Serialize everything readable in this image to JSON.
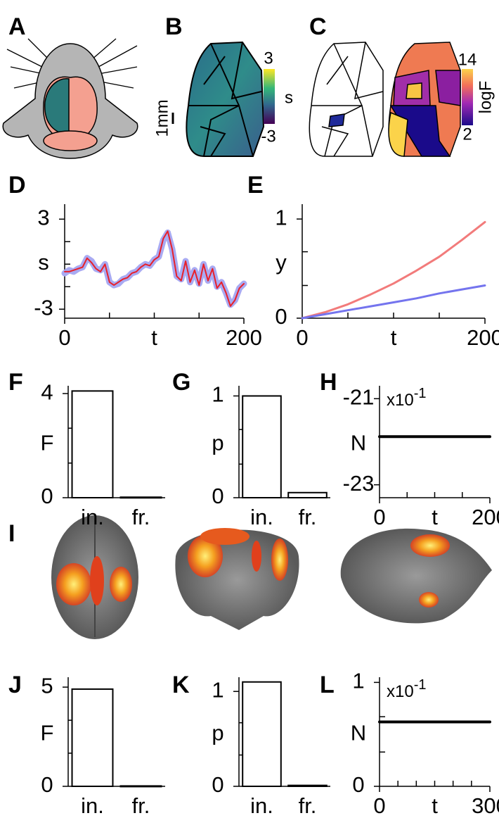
{
  "panel_labels": [
    "A",
    "B",
    "C",
    "D",
    "E",
    "F",
    "G",
    "H",
    "I",
    "J",
    "K",
    "L"
  ],
  "panel_b": {
    "scale_bar": "1mm",
    "colorbar_max": 3,
    "colorbar_min": -3,
    "colorbar_label": "s"
  },
  "panel_c": {
    "colorbar_max": 14,
    "colorbar_min": 2,
    "colorbar_label": "logF"
  },
  "chart_data": [
    {
      "type": "line",
      "xlabel": "t",
      "ylabel": "s",
      "xlim": [
        0,
        200
      ],
      "xticks": [
        0,
        200
      ],
      "xminor": [
        50,
        100,
        150
      ],
      "ylim": [
        -3.6,
        4
      ],
      "yticks": [
        -3,
        3
      ],
      "yminor": [
        -1.5,
        0,
        1.5
      ],
      "x": [
        0,
        5,
        10,
        15,
        20,
        25,
        30,
        35,
        40,
        45,
        50,
        55,
        60,
        65,
        70,
        75,
        80,
        85,
        90,
        95,
        100,
        105,
        110,
        115,
        120,
        125,
        130,
        135,
        140,
        145,
        150,
        155,
        160,
        165,
        170,
        175,
        180,
        185,
        190,
        195,
        200
      ],
      "series": [
        {
          "color": "#a9aaf2",
          "values": [
            -0.6,
            -0.4,
            -0.5,
            -0.3,
            -0.2,
            0.4,
            0.2,
            -0.3,
            -0.4,
            0.0,
            -1.2,
            -1.4,
            -1.3,
            -1.0,
            -0.9,
            -0.6,
            -0.5,
            -0.2,
            0.0,
            -0.1,
            0.3,
            0.5,
            1.6,
            2.1,
            1.0,
            -0.8,
            -1.0,
            0.2,
            -1.2,
            -0.4,
            -1.3,
            0.0,
            -1.1,
            -0.3,
            -1.5,
            -1.2,
            -1.9,
            -2.7,
            -2.4,
            -1.6,
            -1.3
          ]
        },
        {
          "color": "#e8202a",
          "values": [
            -0.5,
            -0.5,
            -0.4,
            -0.3,
            -0.2,
            0.4,
            0.1,
            -0.3,
            -0.5,
            0.0,
            -1.2,
            -1.4,
            -1.2,
            -1.0,
            -0.9,
            -0.6,
            -0.5,
            -0.2,
            0.0,
            -0.1,
            0.3,
            0.5,
            1.7,
            2.2,
            1.0,
            -0.8,
            -1.1,
            0.2,
            -1.2,
            -0.4,
            -1.4,
            0.0,
            -1.1,
            -0.3,
            -1.6,
            -1.2,
            -1.9,
            -2.8,
            -2.4,
            -1.6,
            -1.3
          ]
        }
      ]
    },
    {
      "type": "line",
      "xlabel": "t",
      "ylabel": "y",
      "xlim": [
        0,
        200
      ],
      "xticks": [
        0,
        200
      ],
      "xminor": [
        50,
        100,
        150
      ],
      "ylim": [
        0,
        1.15
      ],
      "yticks": [
        0,
        1
      ],
      "yminor": [
        0.33,
        0.67
      ],
      "x": [
        0,
        25,
        50,
        75,
        100,
        125,
        150,
        175,
        200
      ],
      "series": [
        {
          "color": "#f27b7b",
          "values": [
            0,
            0.06,
            0.14,
            0.24,
            0.35,
            0.48,
            0.62,
            0.79,
            0.97
          ]
        },
        {
          "color": "#7474ee",
          "values": [
            0,
            0.04,
            0.08,
            0.12,
            0.16,
            0.2,
            0.25,
            0.29,
            0.33
          ]
        }
      ]
    },
    {
      "type": "bar",
      "ylabel": "F",
      "categories": [
        "in.",
        "fr."
      ],
      "values": [
        4.1,
        0.02
      ],
      "ylim": [
        0,
        4.3
      ],
      "yticks": [
        0,
        4
      ],
      "yminor": [
        1.33,
        2.67
      ]
    },
    {
      "type": "bar",
      "ylabel": "p",
      "categories": [
        "in.",
        "fr."
      ],
      "values": [
        1.0,
        0.05
      ],
      "ylim": [
        0,
        1.1
      ],
      "yticks": [
        0,
        1
      ],
      "yminor": [
        0.33,
        0.67
      ]
    },
    {
      "type": "line",
      "xlabel": "t",
      "ylabel": "N",
      "multiplier": "x10",
      "exponent": "-1",
      "xlim": [
        0,
        200
      ],
      "xticks": [
        0,
        200
      ],
      "xminor": [
        50,
        100,
        150
      ],
      "ylim": [
        -23.3,
        -20.7
      ],
      "yticks": [
        -23,
        -21
      ],
      "x": [
        0,
        200
      ],
      "series": [
        {
          "color": "#000000",
          "values": [
            -21.88,
            -21.88
          ]
        }
      ]
    },
    {
      "type": "bar",
      "ylabel": "F",
      "categories": [
        "in.",
        "fr."
      ],
      "values": [
        4.9,
        0.02
      ],
      "ylim": [
        0,
        5.5
      ],
      "yticks": [
        0,
        5
      ],
      "yminor": [
        1.67,
        3.33
      ]
    },
    {
      "type": "bar",
      "ylabel": "p",
      "categories": [
        "in.",
        "fr."
      ],
      "values": [
        1.1,
        0.01
      ],
      "ylim": [
        0,
        1.15
      ],
      "yticks": [
        0,
        1
      ],
      "yminor": [
        0.33,
        0.67
      ]
    },
    {
      "type": "line",
      "xlabel": "t",
      "ylabel": "N",
      "multiplier": "x10",
      "exponent": "-1",
      "xlim": [
        0,
        300
      ],
      "xticks": [
        0,
        300
      ],
      "xminor": [
        50,
        100,
        150,
        200,
        250
      ],
      "ylim": [
        0,
        1.05
      ],
      "yticks": [
        0,
        1
      ],
      "yminor": [
        0.33,
        0.67
      ],
      "x": [
        0,
        300
      ],
      "series": [
        {
          "color": "#000000",
          "values": [
            0.62,
            0.62
          ]
        }
      ]
    }
  ]
}
